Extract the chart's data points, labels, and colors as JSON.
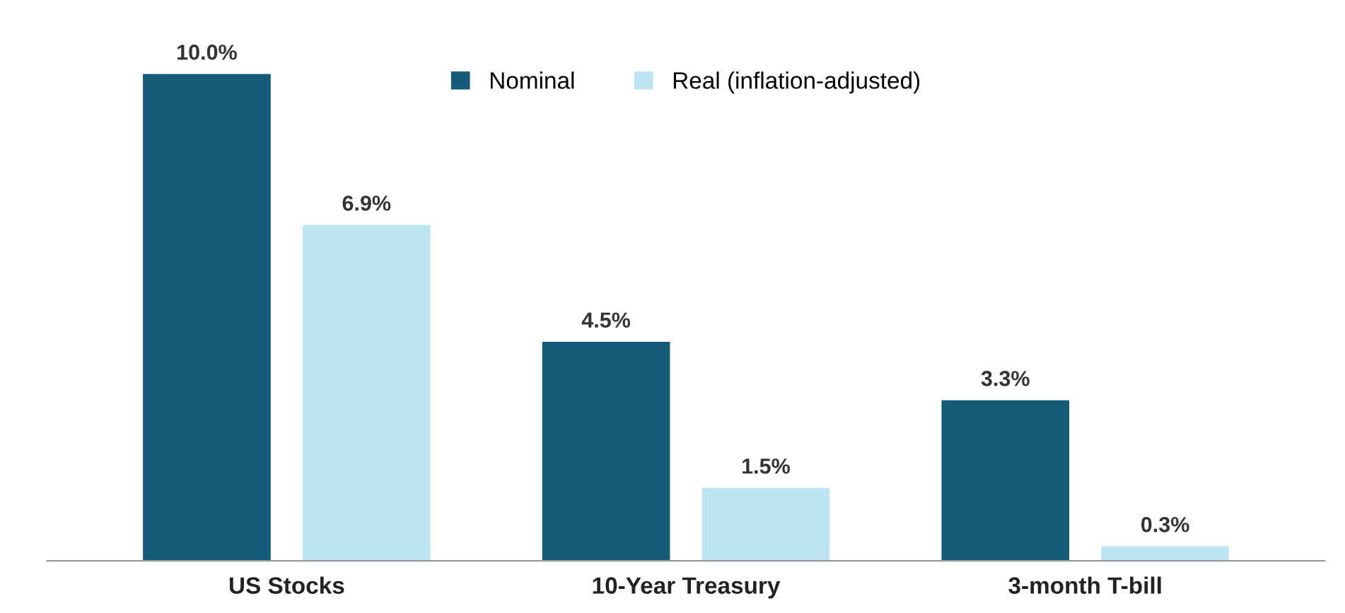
{
  "chart_data": {
    "type": "bar",
    "categories": [
      "US Stocks",
      "10-Year Treasury",
      "3-month T-bill"
    ],
    "series": [
      {
        "name": "Nominal",
        "color": "#175b7b",
        "values": [
          10.0,
          4.5,
          3.3
        ],
        "value_labels": [
          "10.0%",
          "4.5%",
          "3.3%"
        ]
      },
      {
        "name": "Real (inflation-adjusted)",
        "color": "#bfe4f3",
        "values": [
          6.9,
          1.5,
          0.3
        ],
        "value_labels": [
          "6.9%",
          "1.5%",
          "0.3%"
        ]
      }
    ],
    "legend": "top"
  }
}
